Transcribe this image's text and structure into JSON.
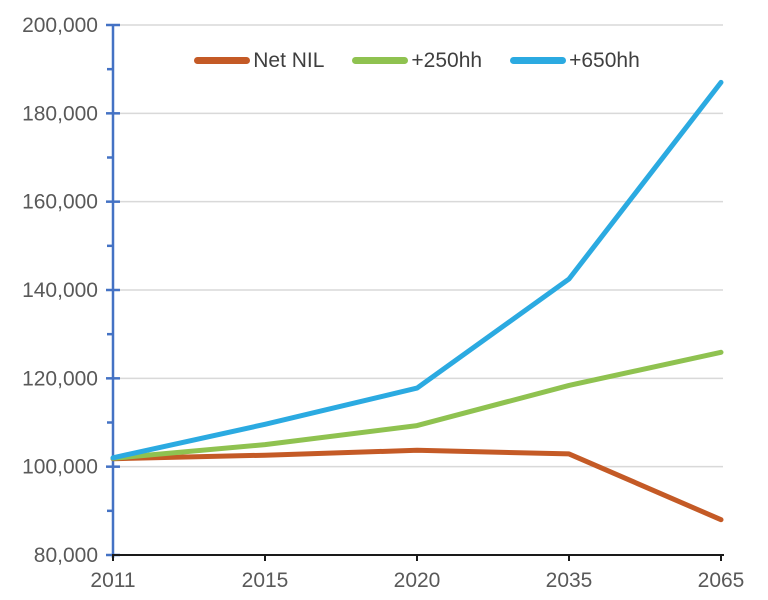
{
  "chart_data": {
    "type": "line",
    "categories": [
      "2011",
      "2015",
      "2020",
      "2035",
      "2065"
    ],
    "series": [
      {
        "name": "Net NIL",
        "color": "#C45A26",
        "values": [
          101800,
          102600,
          103700,
          102900,
          88000
        ]
      },
      {
        "name": "+250hh",
        "color": "#8FC250",
        "values": [
          101900,
          105000,
          109300,
          118400,
          125900
        ]
      },
      {
        "name": "+650hh",
        "color": "#2BAAE1",
        "values": [
          102000,
          109600,
          117800,
          142500,
          187000
        ]
      }
    ],
    "title": "",
    "xlabel": "",
    "ylabel": "",
    "ylim": [
      80000,
      200000
    ],
    "ytick_step": 20000,
    "yminor_step": 10000,
    "ytick_labels": [
      "80,000",
      "100,000",
      "120,000",
      "140,000",
      "160,000",
      "180,000",
      "200,000"
    ],
    "grid": true,
    "legend_position": "top-inside"
  },
  "colors": {
    "background": "#FFFFFF",
    "y_axis": "#4472C4",
    "x_axis": "#1A1A1A",
    "gridline": "#D9D9D9",
    "tick_label": "#595959",
    "legend_text": "#3F3F3F"
  }
}
